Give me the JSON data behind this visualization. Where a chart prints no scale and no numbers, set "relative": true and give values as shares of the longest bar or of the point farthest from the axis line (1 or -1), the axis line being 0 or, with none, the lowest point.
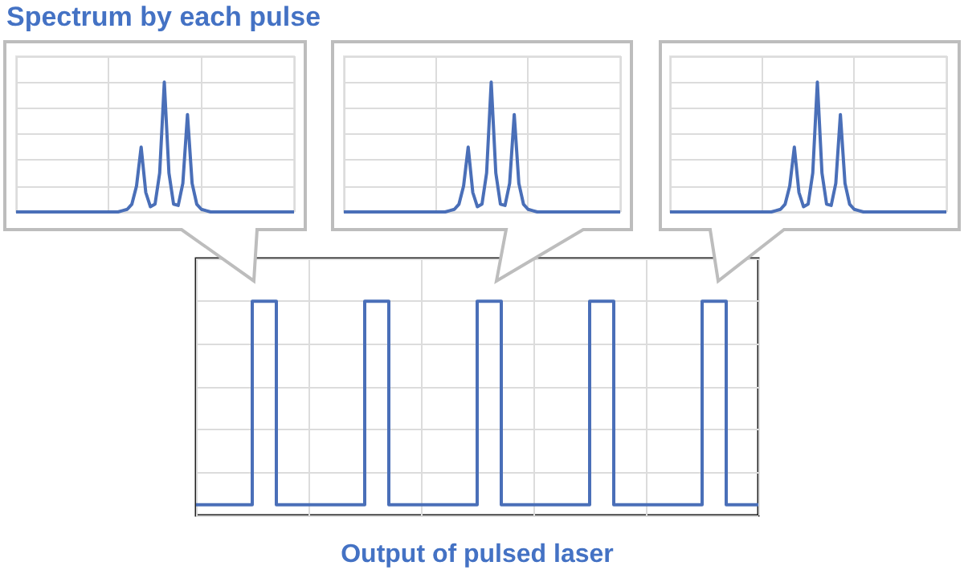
{
  "chart_data": [
    {
      "type": "line",
      "title": "Spectrum by each pulse",
      "relative": true,
      "grid": true,
      "marker": "none",
      "color": "#4a6fb8",
      "categories": [
        null,
        null,
        null,
        null,
        null,
        null,
        null,
        null,
        null,
        null,
        null,
        null,
        null,
        null,
        null,
        null,
        null,
        null,
        null,
        null,
        null,
        null,
        null,
        null,
        null,
        null,
        null,
        null,
        null,
        null,
        null,
        null,
        null,
        null,
        null,
        null,
        null,
        null,
        null,
        null,
        null,
        null,
        null,
        null,
        null,
        null,
        null,
        null,
        null,
        null,
        null,
        null,
        null,
        null,
        null,
        null,
        null,
        null,
        null,
        null,
        null
      ],
      "values": [
        0,
        0,
        0,
        0,
        0,
        0,
        0,
        0,
        0,
        0,
        0,
        0,
        0,
        0,
        0,
        0,
        0,
        0,
        0,
        0,
        0,
        0,
        0,
        0.01,
        0.02,
        0.06,
        0.2,
        0.5,
        0.15,
        0.04,
        0.06,
        0.3,
        1,
        0.3,
        0.06,
        0.05,
        0.22,
        0.75,
        0.22,
        0.06,
        0.02,
        0.01,
        0,
        0,
        0,
        0,
        0,
        0,
        0,
        0,
        0,
        0,
        0,
        0,
        0,
        0,
        0,
        0,
        0,
        0,
        0
      ]
    },
    {
      "type": "line",
      "relative": true,
      "grid": true,
      "marker": "none",
      "color": "#4a6fb8",
      "categories": [
        null,
        null,
        null,
        null,
        null,
        null,
        null,
        null,
        null,
        null,
        null,
        null,
        null,
        null,
        null,
        null,
        null,
        null,
        null,
        null,
        null,
        null,
        null,
        null,
        null,
        null,
        null,
        null,
        null,
        null,
        null,
        null,
        null,
        null,
        null,
        null,
        null,
        null,
        null,
        null,
        null,
        null,
        null,
        null,
        null,
        null,
        null,
        null,
        null,
        null,
        null,
        null,
        null,
        null,
        null,
        null,
        null,
        null,
        null,
        null,
        null
      ],
      "values": [
        0,
        0,
        0,
        0,
        0,
        0,
        0,
        0,
        0,
        0,
        0,
        0,
        0,
        0,
        0,
        0,
        0,
        0,
        0,
        0,
        0,
        0,
        0,
        0.01,
        0.02,
        0.06,
        0.2,
        0.5,
        0.15,
        0.04,
        0.06,
        0.3,
        1,
        0.3,
        0.06,
        0.05,
        0.22,
        0.75,
        0.22,
        0.06,
        0.02,
        0.01,
        0,
        0,
        0,
        0,
        0,
        0,
        0,
        0,
        0,
        0,
        0,
        0,
        0,
        0,
        0,
        0,
        0,
        0,
        0
      ]
    },
    {
      "type": "line",
      "relative": true,
      "grid": true,
      "marker": "none",
      "color": "#4a6fb8",
      "categories": [
        null,
        null,
        null,
        null,
        null,
        null,
        null,
        null,
        null,
        null,
        null,
        null,
        null,
        null,
        null,
        null,
        null,
        null,
        null,
        null,
        null,
        null,
        null,
        null,
        null,
        null,
        null,
        null,
        null,
        null,
        null,
        null,
        null,
        null,
        null,
        null,
        null,
        null,
        null,
        null,
        null,
        null,
        null,
        null,
        null,
        null,
        null,
        null,
        null,
        null,
        null,
        null,
        null,
        null,
        null,
        null,
        null,
        null,
        null,
        null,
        null
      ],
      "values": [
        0,
        0,
        0,
        0,
        0,
        0,
        0,
        0,
        0,
        0,
        0,
        0,
        0,
        0,
        0,
        0,
        0,
        0,
        0,
        0,
        0,
        0,
        0,
        0.01,
        0.02,
        0.06,
        0.2,
        0.5,
        0.15,
        0.04,
        0.06,
        0.3,
        1,
        0.3,
        0.06,
        0.05,
        0.22,
        0.75,
        0.22,
        0.06,
        0.02,
        0.01,
        0,
        0,
        0,
        0,
        0,
        0,
        0,
        0,
        0,
        0,
        0,
        0,
        0,
        0,
        0,
        0,
        0,
        0,
        0
      ]
    },
    {
      "type": "step",
      "title": "Output of pulsed laser",
      "relative": true,
      "grid": true,
      "marker": "none",
      "color": "#4a6fb8",
      "categories": [
        null,
        null,
        null,
        null,
        null,
        null,
        null,
        null,
        null,
        null,
        null,
        null,
        null,
        null,
        null,
        null,
        null,
        null,
        null,
        null,
        null,
        null,
        null,
        null,
        null,
        null,
        null,
        null,
        null,
        null,
        null,
        null,
        null,
        null,
        null,
        null,
        null,
        null,
        null,
        null,
        null,
        null,
        null,
        null,
        null,
        null,
        null,
        null,
        null,
        null,
        null,
        null,
        null,
        null,
        null,
        null,
        null,
        null,
        null,
        null,
        null,
        null,
        null,
        null,
        null,
        null,
        null,
        null,
        null,
        null,
        null
      ],
      "values": [
        0.05,
        0.05,
        0.05,
        0.05,
        0.05,
        0.05,
        0.05,
        1,
        1,
        1,
        0.05,
        0.05,
        0.05,
        0.05,
        0.05,
        0.05,
        0.05,
        0.05,
        0.05,
        0.05,
        0.05,
        1,
        1,
        1,
        0.05,
        0.05,
        0.05,
        0.05,
        0.05,
        0.05,
        0.05,
        0.05,
        0.05,
        0.05,
        0.05,
        1,
        1,
        1,
        0.05,
        0.05,
        0.05,
        0.05,
        0.05,
        0.05,
        0.05,
        0.05,
        0.05,
        0.05,
        0.05,
        1,
        1,
        1,
        0.05,
        0.05,
        0.05,
        0.05,
        0.05,
        0.05,
        0.05,
        0.05,
        0.05,
        0.05,
        0.05,
        1,
        1,
        1,
        0.05,
        0.05,
        0.05,
        0.05,
        0.05
      ]
    }
  ]
}
